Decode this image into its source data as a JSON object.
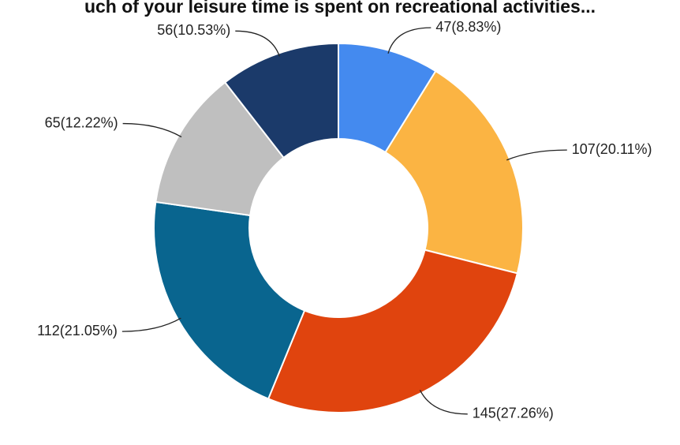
{
  "chart_data": {
    "type": "donut",
    "title": "uch of your leisure time is spent on recreational activities...",
    "values": [
      47,
      107,
      145,
      112,
      65,
      56
    ],
    "value_labels": [
      "47(8.83%)",
      "107(20.11%)",
      "145(27.26%)",
      "112(21.05%)",
      "65(12.22%)",
      "56(10.53%)"
    ],
    "colors": [
      "#448aef",
      "#fbb443",
      "#e0440e",
      "#09658f",
      "#bfbfbf",
      "#1b3a6a"
    ]
  }
}
